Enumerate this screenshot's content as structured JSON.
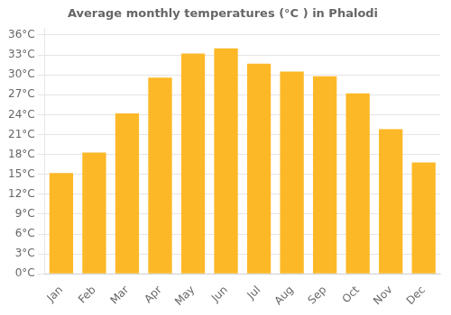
{
  "chart_data": {
    "type": "bar",
    "title": "Average monthly temperatures (°C ) in Phalodi",
    "categories": [
      "Jan",
      "Feb",
      "Mar",
      "Apr",
      "May",
      "Jun",
      "Jul",
      "Aug",
      "Sep",
      "Oct",
      "Nov",
      "Dec"
    ],
    "values": [
      15.2,
      18.3,
      24.2,
      29.6,
      33.2,
      34.0,
      31.7,
      30.5,
      29.8,
      27.2,
      21.8,
      16.8
    ],
    "color": "#FDB827",
    "ylim": [
      0,
      37
    ],
    "yticks": [
      {
        "value": 0,
        "label": "0°C"
      },
      {
        "value": 3,
        "label": "3°C"
      },
      {
        "value": 6,
        "label": "6°C"
      },
      {
        "value": 9,
        "label": "9°C"
      },
      {
        "value": 12,
        "label": "12°C"
      },
      {
        "value": 15,
        "label": "15°C"
      },
      {
        "value": 18,
        "label": "18°C"
      },
      {
        "value": 21,
        "label": "21°C"
      },
      {
        "value": 24,
        "label": "24°C"
      },
      {
        "value": 27,
        "label": "27°C"
      },
      {
        "value": 30,
        "label": "30°C"
      },
      {
        "value": 33,
        "label": "33°C"
      },
      {
        "value": 36,
        "label": "36°C"
      }
    ],
    "grid": true
  }
}
